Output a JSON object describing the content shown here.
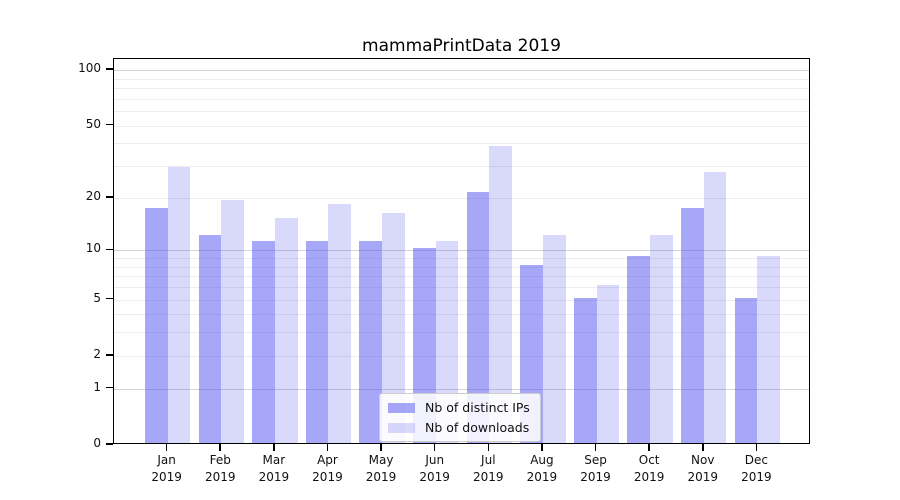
{
  "title": "mammaPrintData 2019",
  "chart_data": {
    "type": "bar",
    "title": "mammaPrintData 2019",
    "categories": [
      "Jan",
      "Feb",
      "Mar",
      "Apr",
      "May",
      "Jun",
      "Jul",
      "Aug",
      "Sep",
      "Oct",
      "Nov",
      "Dec"
    ],
    "year_label": "2019",
    "series": [
      {
        "name": "Nb of distinct IPs",
        "values": [
          17,
          12,
          11,
          11,
          11,
          10,
          21,
          8,
          5,
          9,
          17,
          5
        ],
        "color": "rgba(80,80,240,0.50)"
      },
      {
        "name": "Nb of downloads",
        "values": [
          29,
          19,
          15,
          18,
          16,
          11,
          38,
          12,
          6,
          12,
          27,
          9
        ],
        "color": "rgba(80,80,240,0.22)"
      }
    ],
    "xlabel": "",
    "ylabel": "",
    "y_scale": "log1p",
    "ylim": [
      0,
      115
    ],
    "y_ticks": [
      0,
      1,
      2,
      5,
      10,
      20,
      50,
      100
    ],
    "grid_major": [
      1,
      10,
      100
    ],
    "grid_minor": [
      2,
      3,
      4,
      5,
      6,
      7,
      8,
      9,
      20,
      30,
      40,
      50,
      60,
      70,
      80,
      90
    ],
    "grid": "on",
    "legend_position": "lower center inside plot"
  },
  "colors": {
    "background": "#ffffff",
    "spine": "#000000",
    "grid_major": "#d4d4d4",
    "grid_minor": "#ececec",
    "bar_dark": "rgba(80,80,240,0.50)",
    "bar_light": "rgba(80,80,240,0.22)",
    "text": "#111111"
  }
}
